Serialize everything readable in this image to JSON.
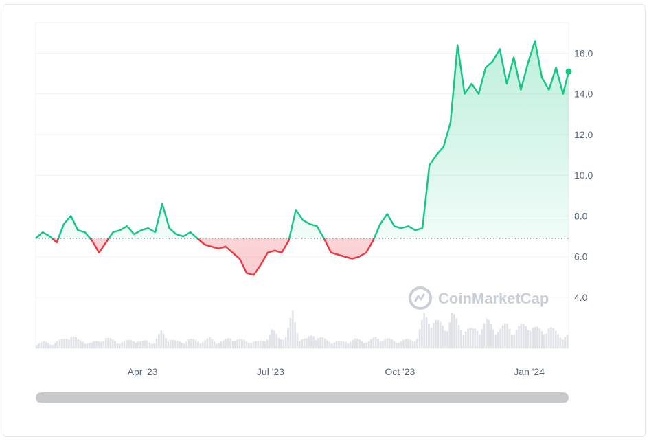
{
  "chart_data": {
    "type": "area",
    "title": "",
    "xlabel": "",
    "ylabel": "",
    "x_ticks": [
      "Apr '23",
      "Jul '23",
      "Oct '23",
      "Jan '24"
    ],
    "y_ticks": [
      "4.0",
      "6.0",
      "8.0",
      "10.0",
      "12.0",
      "14.0",
      "16.0"
    ],
    "ylim": [
      1.5,
      17.5
    ],
    "xlim": [
      "2023-01-15",
      "2024-01-29"
    ],
    "reference_line": 6.9,
    "colors": {
      "above": "#16c784",
      "below": "#ea3943",
      "grid": "#eff2f5",
      "volume": "#e0e3e8"
    },
    "series": [
      {
        "x": [
          "2023-01-15",
          "2023-01-20",
          "2023-01-25",
          "2023-01-30",
          "2023-02-04",
          "2023-02-09",
          "2023-02-14",
          "2023-02-19",
          "2023-02-24",
          "2023-03-01",
          "2023-03-06",
          "2023-03-11",
          "2023-03-16",
          "2023-03-21",
          "2023-03-26",
          "2023-03-31",
          "2023-04-05",
          "2023-04-10",
          "2023-04-15",
          "2023-04-20",
          "2023-04-25",
          "2023-04-30",
          "2023-05-05",
          "2023-05-10",
          "2023-05-15",
          "2023-05-20",
          "2023-05-25",
          "2023-05-30",
          "2023-06-04",
          "2023-06-09",
          "2023-06-14",
          "2023-06-19",
          "2023-06-24",
          "2023-06-29",
          "2023-07-04",
          "2023-07-09",
          "2023-07-14",
          "2023-07-19",
          "2023-07-24",
          "2023-07-29",
          "2023-08-03",
          "2023-08-08",
          "2023-08-13",
          "2023-08-18",
          "2023-08-23",
          "2023-08-28",
          "2023-09-02",
          "2023-09-07",
          "2023-09-12",
          "2023-09-17",
          "2023-09-22",
          "2023-09-27",
          "2023-10-02",
          "2023-10-07",
          "2023-10-12",
          "2023-10-17",
          "2023-10-22",
          "2023-10-27",
          "2023-11-01",
          "2023-11-06",
          "2023-11-11",
          "2023-11-16",
          "2023-11-21",
          "2023-11-26",
          "2023-12-01",
          "2023-12-06",
          "2023-12-11",
          "2023-12-16",
          "2023-12-21",
          "2023-12-26",
          "2023-12-31",
          "2024-01-05",
          "2024-01-10",
          "2024-01-15",
          "2024-01-20",
          "2024-01-25",
          "2024-01-29"
        ],
        "y": [
          6.9,
          7.2,
          7.0,
          6.7,
          7.6,
          8.0,
          7.3,
          7.2,
          6.8,
          6.2,
          6.7,
          7.2,
          7.3,
          7.5,
          7.1,
          7.3,
          7.4,
          7.2,
          8.6,
          7.4,
          7.1,
          7.0,
          7.2,
          6.9,
          6.6,
          6.5,
          6.4,
          6.5,
          6.2,
          5.9,
          5.2,
          5.1,
          5.6,
          6.2,
          6.3,
          6.2,
          6.8,
          8.3,
          7.8,
          7.6,
          7.5,
          6.9,
          6.2,
          6.1,
          6.0,
          5.9,
          6.0,
          6.2,
          6.8,
          7.6,
          8.1,
          7.5,
          7.4,
          7.5,
          7.3,
          7.4,
          10.5,
          11.0,
          11.4,
          12.6,
          16.4,
          14.0,
          14.5,
          14.0,
          15.3,
          15.6,
          16.2,
          14.5,
          15.8,
          14.2,
          15.5,
          16.6,
          14.8,
          14.2,
          15.3,
          14.0,
          15.1
        ]
      }
    ]
  },
  "volume_bars": [
    0.15,
    0.18,
    0.12,
    0.2,
    0.25,
    0.4,
    0.22,
    0.18,
    0.15,
    0.2,
    0.3,
    0.22,
    0.17,
    0.2,
    0.25,
    0.18,
    0.22,
    0.16,
    0.45,
    0.3,
    0.2,
    0.18,
    0.25,
    0.22,
    0.2,
    0.28,
    0.18,
    0.2,
    0.3,
    0.25,
    0.22,
    0.2,
    0.18,
    0.25,
    0.5,
    0.3,
    0.35,
    0.95,
    0.3,
    0.25,
    0.4,
    0.3,
    0.22,
    0.2,
    0.18,
    0.2,
    0.25,
    0.22,
    0.2,
    0.3,
    0.28,
    0.25,
    0.2,
    0.22,
    0.25,
    0.3,
    0.9,
    0.85,
    0.7,
    0.6,
    0.95,
    0.65,
    0.55,
    0.5,
    0.6,
    0.75,
    0.6,
    0.55,
    0.65,
    0.5,
    0.6,
    0.7,
    0.55,
    0.5,
    0.6,
    0.45,
    0.35
  ],
  "watermark": {
    "text": "CoinMarketCap",
    "logo": "coinmarketcap-logo-icon"
  },
  "scrollbar": {
    "position": 0,
    "thumb_fraction": 1
  }
}
